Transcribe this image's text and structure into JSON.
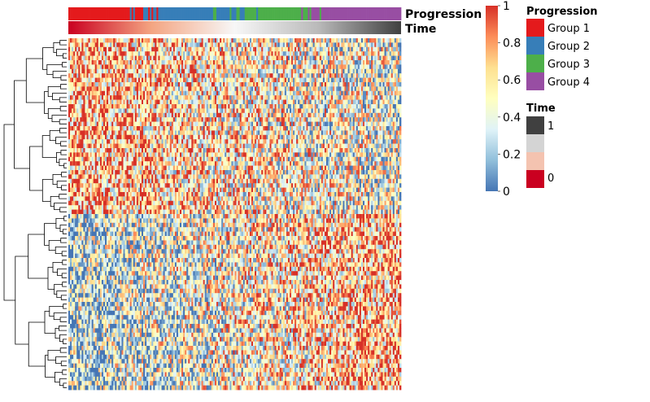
{
  "chart_data": {
    "type": "heatmap",
    "n_rows": 80,
    "n_cols": 200,
    "value_range": [
      0,
      1
    ],
    "colorbar": {
      "ticks": [
        {
          "value": 0,
          "label": "0"
        },
        {
          "value": 0.2,
          "label": "0.2"
        },
        {
          "value": 0.4,
          "label": "0.4"
        },
        {
          "value": 0.6,
          "label": "0.6"
        },
        {
          "value": 0.8,
          "label": "0.8"
        },
        {
          "value": 1,
          "label": "1"
        }
      ],
      "palette": [
        "#4575b4",
        "#91bfdb",
        "#e0f3f8",
        "#ffffbf",
        "#fee090",
        "#fc8d59",
        "#d73027"
      ]
    },
    "row_dendrogram": true,
    "row_structure": [
      {
        "rows": "1-40",
        "pattern": "high on left columns, low on right columns"
      },
      {
        "rows": "41-80",
        "pattern": "low on left columns, high on right columns"
      }
    ],
    "annotations": {
      "progression": {
        "label": "Progression",
        "segments": [
          {
            "group": "Group 1",
            "col_range": [
              0,
              51
            ]
          },
          {
            "group": "Group 2",
            "col_range": [
              51,
              107
            ]
          },
          {
            "group": "Group 3",
            "col_range": [
              107,
              156
            ]
          },
          {
            "group": "Group 4",
            "col_range": [
              156,
              200
            ]
          }
        ]
      },
      "time": {
        "label": "Time",
        "gradient": [
          "#ca0020",
          "#f4a582",
          "#f7f7f7",
          "#bababa",
          "#404040"
        ]
      }
    },
    "legends": {
      "progression": {
        "title": "Progression",
        "items": [
          {
            "label": "Group 1",
            "color": "#e41a1c"
          },
          {
            "label": "Group 2",
            "color": "#377eb8"
          },
          {
            "label": "Group 3",
            "color": "#4daf4a"
          },
          {
            "label": "Group 4",
            "color": "#984ea3"
          }
        ]
      },
      "time": {
        "title": "Time",
        "swatches": [
          "#404040",
          "#d4d4d4",
          "#f4c3b0",
          "#ca0020"
        ],
        "labels": [
          {
            "text": "1",
            "at": "top"
          },
          {
            "text": "0",
            "at": "bottom"
          }
        ]
      }
    }
  }
}
